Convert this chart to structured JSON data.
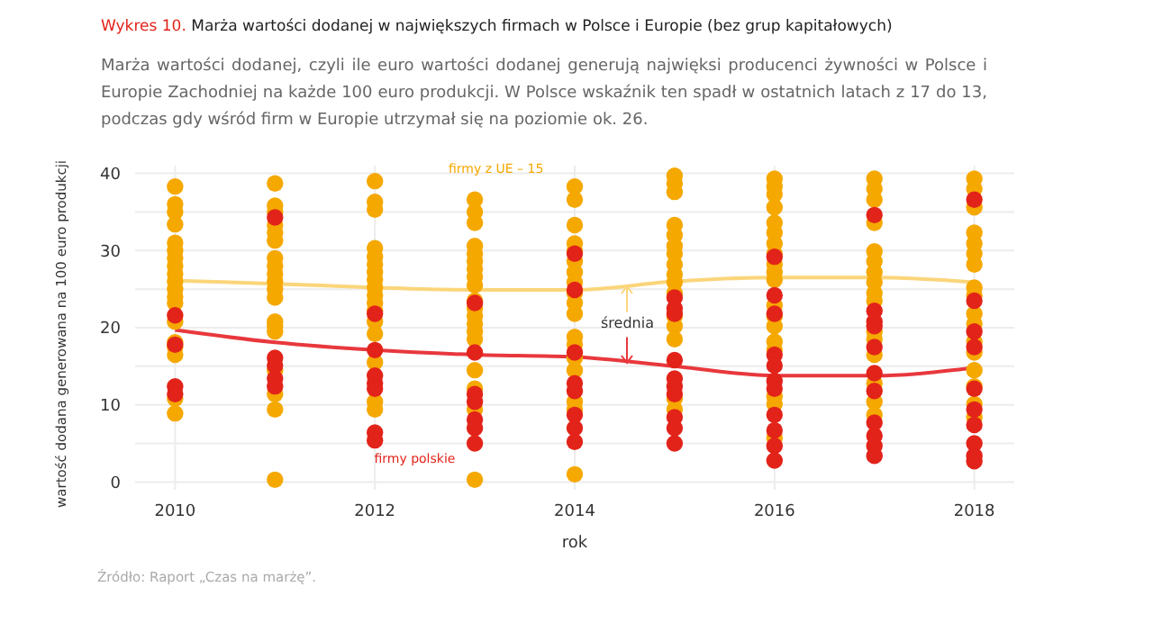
{
  "chart_data": {
    "type": "scatter",
    "title": "Wykres 10. Marża wartości dodanej w największych firmach w Polsce i Europie (bez grup kapitałowych)",
    "subtitle": "Marża wartości dodanej, czyli ile euro wartości dodanej generują najwięksi producenci żywności w Polsce i Europie Zachodniej na każde 100 euro produkcji. W Polsce wskaźnik ten spadł w ostatnich latach z 17 do 13, podczas gdy wśród firm w Europie utrzymał się na poziomie ok. 26.",
    "xlabel": "rok",
    "ylabel": "wartość dodana generowana na 100 euro produkcji",
    "xlim": [
      2009.6,
      2018.4
    ],
    "xticks": [
      2010,
      2012,
      2014,
      2016,
      2018
    ],
    "ylim": [
      -1,
      41
    ],
    "yticks": [
      0,
      {
        "value": 5,
        "label": null
      },
      10,
      {
        "value": 15,
        "label": null
      },
      20,
      {
        "value": 25,
        "label": null
      },
      30,
      {
        "value": 35,
        "label": null
      },
      40
    ],
    "grid": true,
    "legend": false,
    "marker": "circle",
    "annotations": [
      "średnia",
      "Źródło: Raport „Czas na marżę”."
    ],
    "series": [
      {
        "name": "firmy z UE – 15",
        "color": "#f5a800",
        "x": [
          2010,
          2010,
          2010,
          2010,
          2010,
          2010,
          2010,
          2010,
          2010,
          2010,
          2010,
          2010,
          2010,
          2010,
          2010,
          2010,
          2010,
          2010,
          2010,
          2011,
          2011,
          2011,
          2011,
          2011,
          2011,
          2011,
          2011,
          2011,
          2011,
          2011,
          2011,
          2011,
          2011,
          2011,
          2011,
          2011,
          2011,
          2011,
          2012,
          2012,
          2012,
          2012,
          2012,
          2012,
          2012,
          2012,
          2012,
          2012,
          2012,
          2012,
          2012,
          2012,
          2012,
          2012,
          2012,
          2013,
          2013,
          2013,
          2013,
          2013,
          2013,
          2013,
          2013,
          2013,
          2013,
          2013,
          2013,
          2013,
          2013,
          2013,
          2013,
          2013,
          2013,
          2013,
          2014,
          2014,
          2014,
          2014,
          2014,
          2014,
          2014,
          2014,
          2014,
          2014,
          2014,
          2014,
          2014,
          2014,
          2014,
          2014,
          2014,
          2014,
          2015,
          2015,
          2015,
          2015,
          2015,
          2015,
          2015,
          2015,
          2015,
          2015,
          2015,
          2015,
          2015,
          2015,
          2015,
          2015,
          2016,
          2016,
          2016,
          2016,
          2016,
          2016,
          2016,
          2016,
          2016,
          2016,
          2016,
          2016,
          2016,
          2016,
          2016,
          2016,
          2016,
          2016,
          2016,
          2017,
          2017,
          2017,
          2017,
          2017,
          2017,
          2017,
          2017,
          2017,
          2017,
          2017,
          2017,
          2017,
          2017,
          2017,
          2017,
          2018,
          2018,
          2018,
          2018,
          2018,
          2018,
          2018,
          2018,
          2018,
          2018,
          2018,
          2018,
          2018,
          2018,
          2018,
          2018,
          2018
        ],
        "values": [
          38.3,
          36,
          35,
          33.4,
          31,
          30,
          29,
          28,
          27,
          26,
          25,
          24,
          23.2,
          20.8,
          18.1,
          17.5,
          16.5,
          10.8,
          8.9,
          38.7,
          35.8,
          35,
          33.3,
          32.3,
          31.3,
          29,
          28,
          27,
          26,
          25,
          23.9,
          20.8,
          20.2,
          19.5,
          14.5,
          11.4,
          9.4,
          0.3,
          39,
          36.3,
          35.3,
          30.3,
          29.2,
          28.2,
          27.2,
          26.2,
          25.2,
          24.2,
          23.2,
          22.2,
          20.8,
          19.2,
          15.5,
          10.4,
          9.4,
          36.6,
          35,
          33.6,
          30.6,
          29.6,
          28.6,
          27.6,
          26.6,
          25.5,
          23.5,
          22.5,
          21.5,
          20.5,
          19.5,
          18.5,
          14.5,
          12.1,
          9.4,
          0.3,
          38.3,
          36.6,
          33.3,
          30.9,
          29.9,
          28.6,
          27.2,
          25.9,
          24.5,
          23.2,
          21.8,
          18.8,
          17.8,
          16.1,
          14.5,
          10.4,
          9.4,
          1,
          39.7,
          38.7,
          37.6,
          33.3,
          32,
          30.6,
          29.6,
          28.2,
          26.9,
          25.9,
          24.5,
          21.5,
          20.2,
          18.5,
          10.8,
          9.4,
          39.3,
          38.3,
          37.3,
          35.6,
          33.6,
          32.3,
          30.9,
          29.6,
          28.2,
          27.2,
          26.2,
          22.9,
          21.5,
          20.2,
          18.2,
          17.1,
          11.1,
          10.1,
          5.7,
          39.3,
          38,
          36.6,
          33.6,
          29.9,
          28.6,
          27.2,
          25.9,
          24.5,
          23.5,
          19.5,
          18.5,
          16.5,
          12.8,
          10.4,
          8.7,
          39.3,
          38,
          35.6,
          32.3,
          30.9,
          29.6,
          28.2,
          25.2,
          24.2,
          21.8,
          20.5,
          18.2,
          16.8,
          14.5,
          12.4,
          10.1,
          8.4
        ]
      },
      {
        "name": "firmy polskie",
        "color": "#e2231a",
        "x": [
          2010,
          2010,
          2010,
          2010,
          2011,
          2011,
          2011,
          2011,
          2011,
          2012,
          2012,
          2012,
          2012,
          2012,
          2012,
          2012,
          2013,
          2013,
          2013,
          2013,
          2013,
          2013,
          2013,
          2014,
          2014,
          2014,
          2014,
          2014,
          2014,
          2014,
          2014,
          2015,
          2015,
          2015,
          2015,
          2015,
          2015,
          2015,
          2015,
          2015,
          2015,
          2016,
          2016,
          2016,
          2016,
          2016,
          2016,
          2016,
          2016,
          2016,
          2016,
          2016,
          2017,
          2017,
          2017,
          2017,
          2017,
          2017,
          2017,
          2017,
          2017,
          2017,
          2017,
          2018,
          2018,
          2018,
          2018,
          2018,
          2018,
          2018,
          2018,
          2018,
          2018
        ],
        "values": [
          21.6,
          17.8,
          12.4,
          11.4,
          34.3,
          16.1,
          15.1,
          13.4,
          12.4,
          21.8,
          17.1,
          13.8,
          12.8,
          12.1,
          6.4,
          5.4,
          23.2,
          16.8,
          11.4,
          10.4,
          8.1,
          7,
          5,
          29.6,
          24.9,
          16.8,
          12.8,
          11.8,
          8.7,
          7,
          5.2,
          23.9,
          22.5,
          21.8,
          15.8,
          13.4,
          12.4,
          11.4,
          8.4,
          7,
          5,
          29.2,
          24.2,
          21.8,
          16.5,
          15.1,
          13.1,
          12.1,
          8.7,
          6.7,
          4.7,
          2.8,
          34.6,
          22.2,
          20.8,
          20.2,
          17.5,
          14.1,
          11.8,
          7.7,
          6,
          4.7,
          3.4,
          36.6,
          23.5,
          19.5,
          17.5,
          12.1,
          9.4,
          7.4,
          5,
          3.4,
          2.7
        ]
      },
      {
        "type": "line",
        "marker": "none",
        "color": "#fbd57a",
        "x": [
          2010,
          2011,
          2012,
          2013,
          2014,
          2015,
          2016,
          2017,
          2018
        ],
        "values": [
          26.1,
          25.7,
          25.2,
          24.9,
          24.9,
          26,
          26.5,
          26.5,
          25.9
        ]
      },
      {
        "type": "line",
        "marker": "none",
        "color": "#e8383d",
        "x": [
          2010,
          2011,
          2012,
          2013,
          2014,
          2015,
          2016,
          2017,
          2018
        ],
        "values": [
          19.7,
          18.1,
          17.1,
          16.5,
          16.2,
          15,
          13.8,
          13.8,
          14.8
        ]
      }
    ]
  }
}
